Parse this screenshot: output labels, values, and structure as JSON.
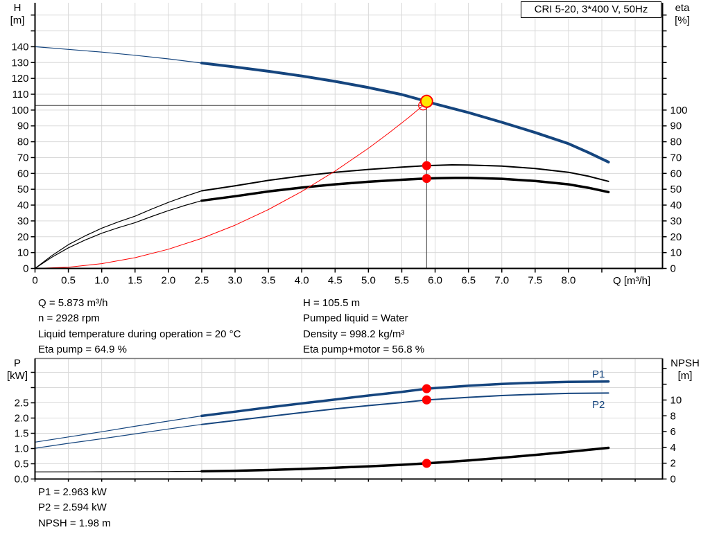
{
  "title_box": "CRI 5-20, 3*400 V, 50Hz",
  "colors": {
    "curve_blue": "#15457e",
    "grid": "#d9d9d9",
    "axis": "#000000",
    "red": "#ff0000",
    "yellow": "#ffe600",
    "crosshair": "#404040",
    "chart_top_border": "#808080",
    "background": "#ffffff"
  },
  "chart_data": [
    {
      "type": "line",
      "id": "performance-chart",
      "title": "CRI 5-20, 3*400 V, 50Hz",
      "x_axis": {
        "label": "Q [m³/h]",
        "min": 0,
        "max": 9.41,
        "tick_step": 0.5,
        "label_max": 8,
        "decimals": 1,
        "zero_plain": true,
        "show_labels": true
      },
      "y_left": {
        "name": "H",
        "unit": "[m]",
        "min": 0,
        "max": 167.75,
        "tick_step": 10,
        "label_max": 140,
        "decimals": 0
      },
      "y_right": {
        "name": "eta",
        "unit": "[%]",
        "min": 0,
        "max": 167.75,
        "tick_step": 10,
        "label_max": 100,
        "decimals": 0
      },
      "series": [
        {
          "name": "pump-curve-extension",
          "axis": "left",
          "color": "#15457e",
          "width": 1.2,
          "points": [
            [
              0,
              140
            ],
            [
              0.5,
              138.3
            ],
            [
              1,
              136.6
            ],
            [
              1.5,
              134.6
            ],
            [
              2,
              132.3
            ],
            [
              2.5,
              129.7
            ]
          ]
        },
        {
          "name": "pump-curve",
          "axis": "left",
          "color": "#15457e",
          "width": 4,
          "points": [
            [
              2.5,
              129.7
            ],
            [
              3,
              127.2
            ],
            [
              3.5,
              124.5
            ],
            [
              4,
              121.5
            ],
            [
              4.5,
              118.1
            ],
            [
              5,
              114.2
            ],
            [
              5.5,
              109.8
            ],
            [
              5.873,
              105.5
            ],
            [
              6,
              103.9
            ],
            [
              6.5,
              98.4
            ],
            [
              7,
              92.3
            ],
            [
              7.5,
              85.8
            ],
            [
              8,
              78.8
            ],
            [
              8.3,
              73.2
            ],
            [
              8.6,
              67.2
            ]
          ]
        },
        {
          "name": "eta-pump-extension",
          "axis": "right",
          "color": "#000000",
          "width": 1.2,
          "points": [
            [
              0,
              0
            ],
            [
              0.25,
              8
            ],
            [
              0.5,
              15
            ],
            [
              0.75,
              20.5
            ],
            [
              1,
              25.4
            ],
            [
              1.25,
              29.4
            ],
            [
              1.5,
              33
            ],
            [
              1.75,
              37.5
            ],
            [
              2,
              41.7
            ],
            [
              2.25,
              45.5
            ],
            [
              2.5,
              49
            ]
          ]
        },
        {
          "name": "eta-pump-curve",
          "axis": "right",
          "color": "#000000",
          "width": 2,
          "points": [
            [
              2.5,
              49
            ],
            [
              3,
              52.2
            ],
            [
              3.5,
              55.6
            ],
            [
              4,
              58.4
            ],
            [
              4.5,
              60.7
            ],
            [
              5,
              62.5
            ],
            [
              5.5,
              64
            ],
            [
              5.873,
              64.9
            ],
            [
              6.25,
              65.4
            ],
            [
              6.5,
              65.3
            ],
            [
              7,
              64.6
            ],
            [
              7.5,
              63.1
            ],
            [
              8,
              60.7
            ],
            [
              8.3,
              58.2
            ],
            [
              8.6,
              55
            ]
          ]
        },
        {
          "name": "eta-pump-motor-extension",
          "axis": "right",
          "color": "#000000",
          "width": 1.2,
          "points": [
            [
              0,
              0
            ],
            [
              0.25,
              7
            ],
            [
              0.5,
              13
            ],
            [
              0.75,
              17.9
            ],
            [
              1,
              22.2
            ],
            [
              1.25,
              25.7
            ],
            [
              1.5,
              28.9
            ],
            [
              1.75,
              32.8
            ],
            [
              2,
              36.5
            ],
            [
              2.25,
              39.8
            ],
            [
              2.5,
              42.8
            ]
          ]
        },
        {
          "name": "eta-pump-motor-curve",
          "axis": "right",
          "color": "#000000",
          "width": 3.5,
          "points": [
            [
              2.5,
              42.8
            ],
            [
              3,
              45.6
            ],
            [
              3.5,
              48.6
            ],
            [
              4,
              51.1
            ],
            [
              4.5,
              53.1
            ],
            [
              5,
              54.7
            ],
            [
              5.5,
              56
            ],
            [
              5.873,
              56.8
            ],
            [
              6.3,
              57.2
            ],
            [
              6.5,
              57.2
            ],
            [
              7,
              56.6
            ],
            [
              7.5,
              55.2
            ],
            [
              8,
              53.1
            ],
            [
              8.3,
              50.9
            ],
            [
              8.6,
              48.2
            ]
          ]
        },
        {
          "name": "system-curve",
          "axis": "left",
          "color": "#ff0000",
          "width": 1,
          "points": [
            [
              0,
              0
            ],
            [
              0.5,
              0.8
            ],
            [
              1,
              3
            ],
            [
              1.5,
              6.8
            ],
            [
              2,
              12.1
            ],
            [
              2.5,
              19
            ],
            [
              3,
              27.3
            ],
            [
              3.5,
              37.2
            ],
            [
              4,
              48.6
            ],
            [
              4.5,
              61.5
            ],
            [
              5,
              75.9
            ],
            [
              5.3,
              85.3
            ],
            [
              5.6,
              95.2
            ],
            [
              5.82,
              102.9
            ],
            [
              5.873,
              105.5
            ]
          ]
        }
      ],
      "crosshair": {
        "h_value": 102.9,
        "v_x": 5.873,
        "v_top_value": 105.5
      },
      "markers": [
        {
          "name": "requested-duty-marker",
          "style": "open-red",
          "x": 5.82,
          "value": 102.9,
          "axis": "left"
        },
        {
          "name": "duty-point-marker",
          "style": "yellow",
          "x": 5.873,
          "value": 105.5,
          "axis": "left"
        },
        {
          "name": "eta-pump-duty-marker",
          "style": "red-dot",
          "x": 5.873,
          "value": 64.9,
          "axis": "right"
        },
        {
          "name": "eta-pump-motor-duty-marker",
          "style": "red-dot",
          "x": 5.873,
          "value": 56.8,
          "axis": "right"
        }
      ]
    },
    {
      "type": "line",
      "id": "power-npsh-chart",
      "top_border": true,
      "x_axis": {
        "label": "",
        "min": 0,
        "max": 9.41,
        "tick_step": 0.5,
        "label_max": 8,
        "decimals": 1,
        "zero_plain": true,
        "show_labels": false
      },
      "y_left": {
        "name": "P",
        "unit": "[kW]",
        "min": 0,
        "max": 3.955,
        "tick_step": 0.5,
        "label_max": 2.5,
        "decimals": 1
      },
      "y_right": {
        "name": "NPSH",
        "unit": "[m]",
        "min": 0,
        "max": 15.26,
        "tick_step": 2,
        "label_max": 10,
        "decimals": 0
      },
      "series": [
        {
          "name": "p1-extension",
          "axis": "left",
          "color": "#15457e",
          "width": 1.2,
          "points": [
            [
              0,
              1.21
            ],
            [
              0.5,
              1.38
            ],
            [
              1,
              1.55
            ],
            [
              1.5,
              1.73
            ],
            [
              2,
              1.9
            ],
            [
              2.5,
              2.07
            ]
          ]
        },
        {
          "name": "p1-curve",
          "axis": "left",
          "color": "#15457e",
          "width": 3.5,
          "points": [
            [
              2.5,
              2.07
            ],
            [
              3,
              2.21
            ],
            [
              3.5,
              2.35
            ],
            [
              4,
              2.48
            ],
            [
              4.5,
              2.61
            ],
            [
              5,
              2.74
            ],
            [
              5.5,
              2.86
            ],
            [
              5.873,
              2.963
            ],
            [
              6.5,
              3.06
            ],
            [
              7,
              3.12
            ],
            [
              7.5,
              3.16
            ],
            [
              8,
              3.19
            ],
            [
              8.6,
              3.2
            ]
          ]
        },
        {
          "name": "p2-extension",
          "axis": "left",
          "color": "#15457e",
          "width": 1.2,
          "points": [
            [
              0,
              1.01
            ],
            [
              0.5,
              1.17
            ],
            [
              1,
              1.32
            ],
            [
              1.5,
              1.48
            ],
            [
              2,
              1.64
            ],
            [
              2.5,
              1.79
            ]
          ]
        },
        {
          "name": "p2-curve",
          "axis": "left",
          "color": "#15457e",
          "width": 2,
          "points": [
            [
              2.5,
              1.79
            ],
            [
              3,
              1.92
            ],
            [
              3.5,
              2.05
            ],
            [
              4,
              2.18
            ],
            [
              4.5,
              2.3
            ],
            [
              5,
              2.41
            ],
            [
              5.5,
              2.51
            ],
            [
              5.873,
              2.594
            ],
            [
              6.5,
              2.68
            ],
            [
              7,
              2.74
            ],
            [
              7.5,
              2.78
            ],
            [
              8,
              2.81
            ],
            [
              8.6,
              2.82
            ]
          ]
        },
        {
          "name": "npsh-extension",
          "axis": "right",
          "color": "#000000",
          "width": 1.2,
          "points": [
            [
              0,
              0.9
            ],
            [
              1,
              0.92
            ],
            [
              2,
              0.95
            ],
            [
              2.5,
              0.97
            ]
          ]
        },
        {
          "name": "npsh-curve",
          "axis": "right",
          "color": "#000000",
          "width": 3.5,
          "points": [
            [
              2.5,
              0.97
            ],
            [
              3,
              1.04
            ],
            [
              3.5,
              1.14
            ],
            [
              4,
              1.27
            ],
            [
              4.5,
              1.43
            ],
            [
              5,
              1.6
            ],
            [
              5.5,
              1.8
            ],
            [
              5.873,
              1.98
            ],
            [
              6.5,
              2.35
            ],
            [
              7,
              2.68
            ],
            [
              7.5,
              3.05
            ],
            [
              8,
              3.45
            ],
            [
              8.6,
              3.95
            ]
          ]
        }
      ],
      "series_labels": [
        {
          "text": "P1",
          "x": 8.45,
          "value": 3.33,
          "axis": "left"
        },
        {
          "text": "P2",
          "x": 8.45,
          "value": 2.33,
          "axis": "left"
        }
      ],
      "markers": [
        {
          "name": "p1-duty-marker",
          "style": "red-dot",
          "x": 5.873,
          "value": 2.963,
          "axis": "left"
        },
        {
          "name": "p2-duty-marker",
          "style": "red-dot",
          "x": 5.873,
          "value": 2.594,
          "axis": "left"
        },
        {
          "name": "npsh-duty-marker",
          "style": "red-dot",
          "x": 5.873,
          "value": 1.98,
          "axis": "right"
        }
      ]
    }
  ],
  "annotations": {
    "top_left": [
      "Q = 5.873 m³/h",
      "n = 2928 rpm",
      "Liquid temperature during operation = 20 °C",
      "Eta pump = 64.9 %"
    ],
    "top_right": [
      "H = 105.5 m",
      "Pumped liquid = Water",
      "Density = 998.2 kg/m³",
      "Eta pump+motor = 56.8 %"
    ],
    "bottom": [
      "P1 = 2.963 kW",
      "P2 = 2.594 kW",
      "NPSH = 1.98 m"
    ]
  }
}
